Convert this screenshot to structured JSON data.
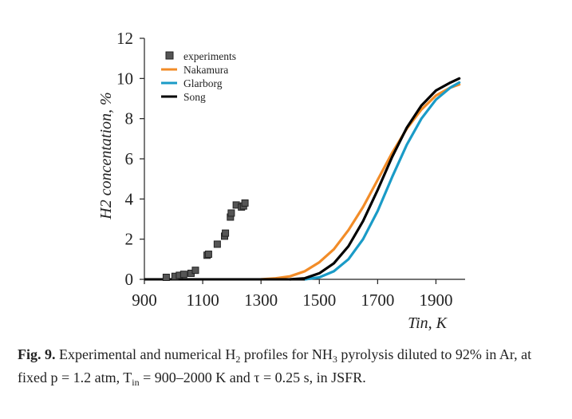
{
  "chart_data": {
    "type": "scatter+line",
    "xlabel": "Tin, K",
    "ylabel": "H2 concentation, %",
    "xlim": [
      900,
      2000
    ],
    "ylim": [
      0,
      12
    ],
    "xticks": [
      900,
      1100,
      1300,
      1500,
      1700,
      1900
    ],
    "yticks": [
      0,
      2,
      4,
      6,
      8,
      10,
      12
    ],
    "grid": false,
    "legend_position": "top-left",
    "series": [
      {
        "name": "experiments",
        "kind": "scatter",
        "marker": "square",
        "color": "#555555",
        "x": [
          975,
          1005,
          1020,
          1035,
          1060,
          1075,
          1115,
          1120,
          1150,
          1175,
          1178,
          1195,
          1198,
          1215,
          1233,
          1240,
          1245
        ],
        "y": [
          0.1,
          0.15,
          0.2,
          0.25,
          0.3,
          0.45,
          1.2,
          1.25,
          1.75,
          2.15,
          2.3,
          3.1,
          3.3,
          3.7,
          3.6,
          3.65,
          3.8
        ]
      },
      {
        "name": "Nakamura",
        "kind": "line",
        "color": "#f28c28",
        "x": [
          1300,
          1350,
          1400,
          1450,
          1500,
          1550,
          1600,
          1650,
          1700,
          1750,
          1800,
          1850,
          1900,
          1950,
          1980
        ],
        "y": [
          0.0,
          0.05,
          0.15,
          0.4,
          0.85,
          1.5,
          2.45,
          3.6,
          4.95,
          6.3,
          7.5,
          8.45,
          9.15,
          9.55,
          9.7
        ]
      },
      {
        "name": "Glarborg",
        "kind": "line",
        "color": "#1a9bc7",
        "x": [
          1450,
          1500,
          1550,
          1600,
          1650,
          1700,
          1750,
          1800,
          1850,
          1900,
          1950,
          1980
        ],
        "y": [
          0.0,
          0.1,
          0.4,
          1.0,
          2.0,
          3.4,
          5.1,
          6.7,
          8.0,
          8.95,
          9.55,
          9.8
        ]
      },
      {
        "name": "Song",
        "kind": "line",
        "color": "#000000",
        "x": [
          1400,
          1450,
          1500,
          1550,
          1600,
          1650,
          1700,
          1750,
          1800,
          1850,
          1900,
          1950,
          1980
        ],
        "y": [
          0.0,
          0.05,
          0.3,
          0.8,
          1.65,
          2.9,
          4.45,
          6.1,
          7.55,
          8.65,
          9.4,
          9.8,
          10.0
        ]
      }
    ]
  },
  "caption": {
    "label": "Fig. 9.",
    "text_1": " Experimental and numerical H",
    "sub_1": "2",
    "text_2": " profiles for NH",
    "sub_2": "3",
    "text_3": " pyrolysis diluted to 92% in Ar, at fixed p = 1.2 atm, T",
    "sub_3": "in",
    "text_4": " = 900–2000 K and τ = 0.25 s, in JSFR."
  }
}
